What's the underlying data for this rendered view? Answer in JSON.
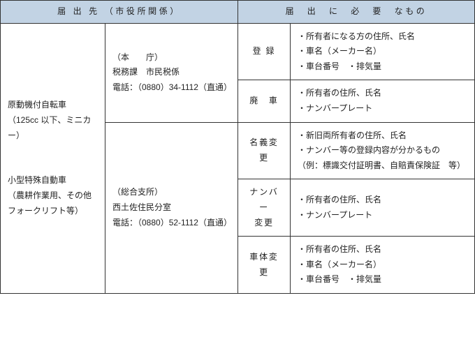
{
  "header": {
    "left": "届 出 先 （市役所関係）",
    "right": "届　出　に　必　要　なもの"
  },
  "col1": {
    "line1": "原動機付自転車",
    "line2": "（125cc 以下、ミニカー）",
    "line3": "小型特殊自動車",
    "line4": "（農耕作業用、その他フォークリフト等）"
  },
  "office1": {
    "line1": "（本　　庁）",
    "line2": "税務課　市民税係",
    "line3": "電話：（0880）34-1112（直通）"
  },
  "office2": {
    "line1": "（総合支所）",
    "line2": "西土佐住民分室",
    "line3": "電話：（0880）52-1112（直通）"
  },
  "rows": {
    "r1": {
      "label": "登 録",
      "i1": "・所有者になる方の住所、氏名",
      "i2": "・車名（メーカー名）",
      "i3": "・車台番号　・排気量"
    },
    "r2": {
      "label": "廃　車",
      "i1": "・所有者の住所、氏名",
      "i2": "・ナンバープレート"
    },
    "r3": {
      "label": "名義変更",
      "i1": "・新旧両所有者の住所、氏名",
      "i2": "・ナンバー等の登録内容が分かるもの",
      "i3": "（例：標識交付証明書、自賠責保険証　等）"
    },
    "r4": {
      "label_l1": "ナンバー",
      "label_l2": "変更",
      "i1": "・所有者の住所、氏名",
      "i2": "・ナンバープレート"
    },
    "r5": {
      "label": "車体変更",
      "i1": "・所有者の住所、氏名",
      "i2": "・車名（メーカー名）",
      "i3": "・車台番号　・排気量"
    }
  }
}
